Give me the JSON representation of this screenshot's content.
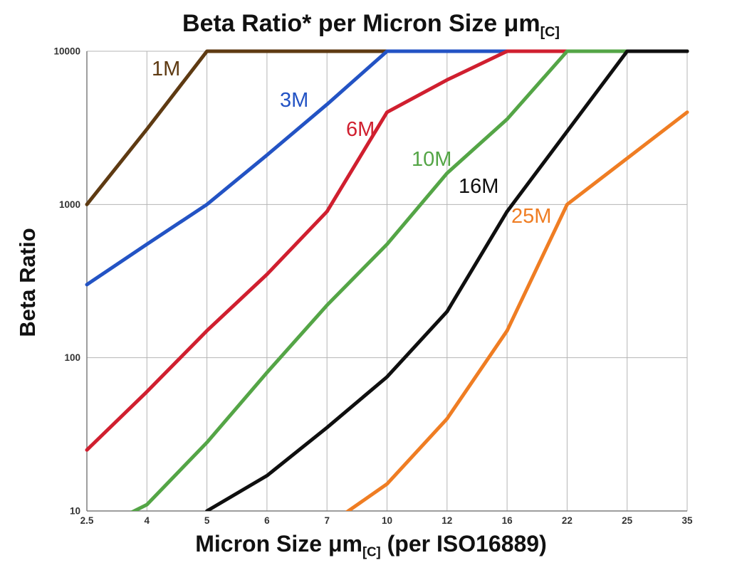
{
  "chart_data": {
    "type": "line",
    "title_main": "Beta Ratio* per Micron Size μm",
    "title_sub": "[C]",
    "ylabel": "Beta Ratio",
    "xlabel_main": "Micron Size μm",
    "xlabel_sub": "[C]",
    "xlabel_post": " (per ISO16889)",
    "x_scale": "category",
    "y_scale": "log",
    "grid": true,
    "legend_position": "inline-labels",
    "ylim": [
      10,
      10000
    ],
    "y_ticks": [
      "10",
      "100",
      "1000",
      "10000"
    ],
    "categories": [
      "2.5",
      "4",
      "5",
      "6",
      "7",
      "10",
      "12",
      "16",
      "22",
      "25",
      "35"
    ],
    "series": [
      {
        "name": "1M",
        "color": "#5e3a12",
        "values": [
          1000,
          3100,
          10000,
          10000,
          10000,
          10000,
          10000,
          10000,
          10000,
          10000,
          10000
        ]
      },
      {
        "name": "3M",
        "color": "#2353c4",
        "values": [
          300,
          550,
          1000,
          2100,
          4500,
          10000,
          10000,
          10000,
          10000,
          10000,
          10000
        ]
      },
      {
        "name": "6M",
        "color": "#d01f2f",
        "values": [
          25,
          60,
          150,
          350,
          900,
          4000,
          6500,
          10000,
          10000,
          10000,
          10000
        ]
      },
      {
        "name": "10M",
        "color": "#54a546",
        "values": [
          7,
          11,
          28,
          80,
          220,
          550,
          1600,
          3600,
          10000,
          10000,
          10000
        ]
      },
      {
        "name": "16M",
        "color": "#0f0f0f",
        "values": [
          null,
          null,
          10,
          17,
          35,
          75,
          200,
          900,
          3000,
          10000,
          10000
        ]
      },
      {
        "name": "25M",
        "color": "#ef7d23",
        "values": [
          null,
          null,
          null,
          null,
          8,
          15,
          40,
          150,
          1000,
          2000,
          4000
        ]
      }
    ],
    "style": {
      "gridline_color": "#b5b5b5",
      "axis_color": "#7f7f7f",
      "tick_label_color": "#333333",
      "line_width": 5
    }
  }
}
